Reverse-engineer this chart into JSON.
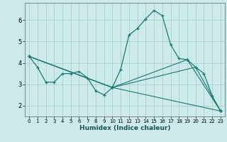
{
  "xlabel": "Humidex (Indice chaleur)",
  "bg_color": "#cceaea",
  "grid_color": "#aacfcf",
  "line_color": "#1a7a6e",
  "xlim": [
    -0.5,
    23.5
  ],
  "ylim": [
    1.5,
    6.8
  ],
  "yticks": [
    2,
    3,
    4,
    5,
    6
  ],
  "xticks": [
    0,
    1,
    2,
    3,
    4,
    5,
    6,
    7,
    8,
    9,
    10,
    11,
    12,
    13,
    14,
    15,
    16,
    17,
    18,
    19,
    20,
    21,
    22,
    23
  ],
  "series1_x": [
    0,
    1,
    2,
    3,
    4,
    5,
    6,
    7,
    8,
    9,
    10,
    11,
    12,
    13,
    14,
    15,
    16,
    17,
    18,
    19,
    20,
    21,
    22,
    23
  ],
  "series1_y": [
    4.3,
    3.8,
    3.1,
    3.1,
    3.5,
    3.5,
    3.6,
    3.3,
    2.7,
    2.5,
    2.85,
    3.7,
    5.3,
    5.6,
    6.05,
    6.45,
    6.2,
    4.85,
    4.2,
    4.15,
    3.8,
    3.5,
    2.45,
    1.75
  ],
  "series2_x": [
    0,
    10,
    23
  ],
  "series2_y": [
    4.3,
    2.85,
    1.75
  ],
  "series3_x": [
    0,
    10,
    20,
    23
  ],
  "series3_y": [
    4.3,
    2.85,
    3.8,
    1.75
  ],
  "series4_x": [
    0,
    10,
    19,
    23
  ],
  "series4_y": [
    4.3,
    2.85,
    4.15,
    1.75
  ]
}
